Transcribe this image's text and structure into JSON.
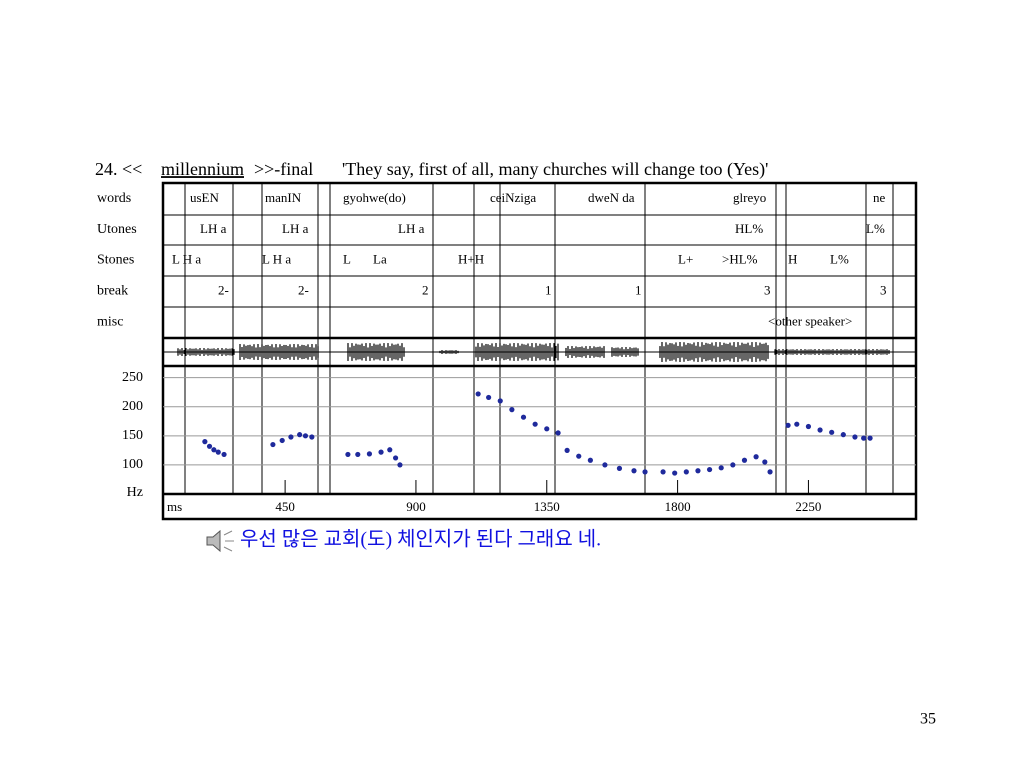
{
  "slide": {
    "title": {
      "number": "24. <<",
      "word": "millennium",
      "suffix": ">>-final",
      "gloss": "'They say, first of all, many churches will change too (Yes)'"
    },
    "tiers": [
      {
        "name": "words",
        "labels": [
          "usEN",
          "manIN",
          "gyohwe(do)",
          "ceiNziga",
          "dweN da",
          "glreyo",
          "ne"
        ]
      },
      {
        "name": "Utones",
        "labels": [
          "LH a",
          "LH a",
          "LH a",
          "HL%",
          "L%"
        ]
      },
      {
        "name": "Stones",
        "labels": [
          "L H a",
          "L H a",
          "L",
          "La",
          "H+H",
          "L+",
          ">HL%",
          "H",
          "L%"
        ]
      },
      {
        "name": "break",
        "labels": [
          "2-",
          "2-",
          "2",
          "1",
          "1",
          "3",
          "3"
        ]
      },
      {
        "name": "misc",
        "labels": [
          "<other speaker>"
        ]
      }
    ],
    "caption": "우선 많은 교회(도) 체인지가 된다 그래요 네.",
    "page_number": "35"
  },
  "chart_data": {
    "type": "scatter",
    "x_label": "ms",
    "y_label": "Hz",
    "xlim": [
      30,
      2620
    ],
    "xticks": [
      450,
      900,
      1350,
      1800,
      2250
    ],
    "ylim": [
      50,
      270
    ],
    "yticks": [
      100,
      150,
      200,
      250
    ],
    "grid": true,
    "x": [
      174,
      190,
      205,
      220,
      240,
      null,
      408,
      440,
      470,
      500,
      520,
      542,
      null,
      666,
      700,
      740,
      780,
      810,
      830,
      845,
      null,
      1114,
      1150,
      1190,
      1230,
      1270,
      1310,
      1350,
      1389,
      1420,
      1460,
      1500,
      1550,
      1600,
      1650,
      1688,
      null,
      1750,
      1790,
      1830,
      1870,
      1910,
      1950,
      1990,
      2030,
      2070,
      2100,
      2118,
      null,
      2180,
      2210,
      2250,
      2290,
      2330,
      2370,
      2410,
      2440,
      2462
    ],
    "series": [
      {
        "color": "#1f2a9c",
        "values": [
          140,
          132,
          126,
          122,
          118,
          null,
          135,
          142,
          148,
          152,
          150,
          148,
          null,
          118,
          118,
          119,
          122,
          126,
          112,
          100,
          null,
          222,
          216,
          210,
          195,
          182,
          170,
          162,
          155,
          125,
          115,
          108,
          100,
          94,
          90,
          88,
          null,
          88,
          86,
          88,
          90,
          92,
          95,
          100,
          108,
          114,
          105,
          88,
          null,
          168,
          170,
          166,
          160,
          156,
          152,
          148,
          146,
          146
        ]
      }
    ]
  }
}
